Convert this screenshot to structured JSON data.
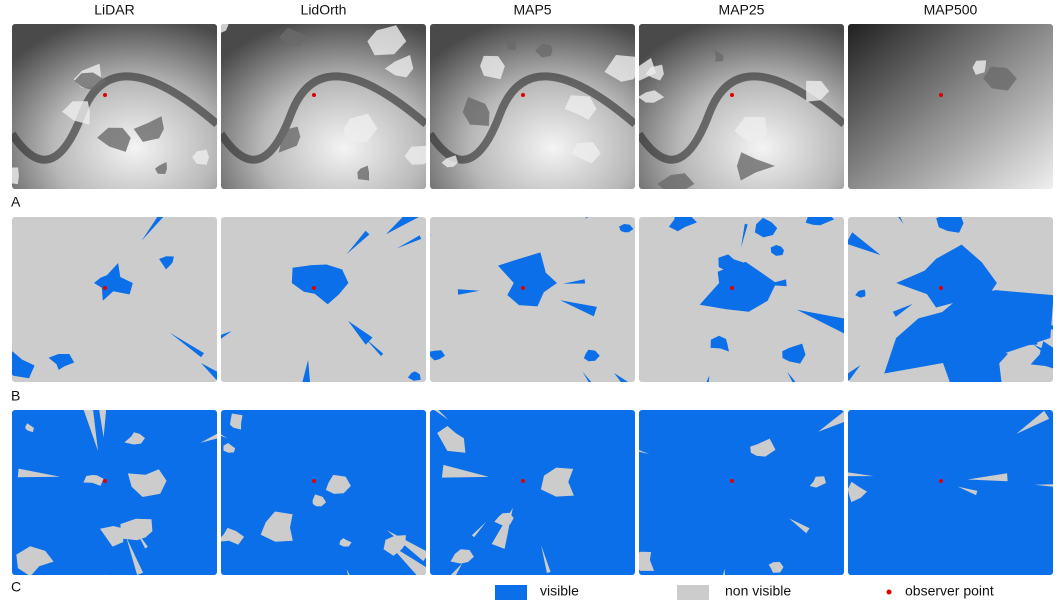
{
  "columns": [
    "LiDAR",
    "LidOrth",
    "MAP5",
    "MAP25",
    "MAP500"
  ],
  "rows": [
    "A",
    "B",
    "C"
  ],
  "legend": {
    "visible": "visible",
    "non_visible": "non visible",
    "observer": "observer point"
  }
}
